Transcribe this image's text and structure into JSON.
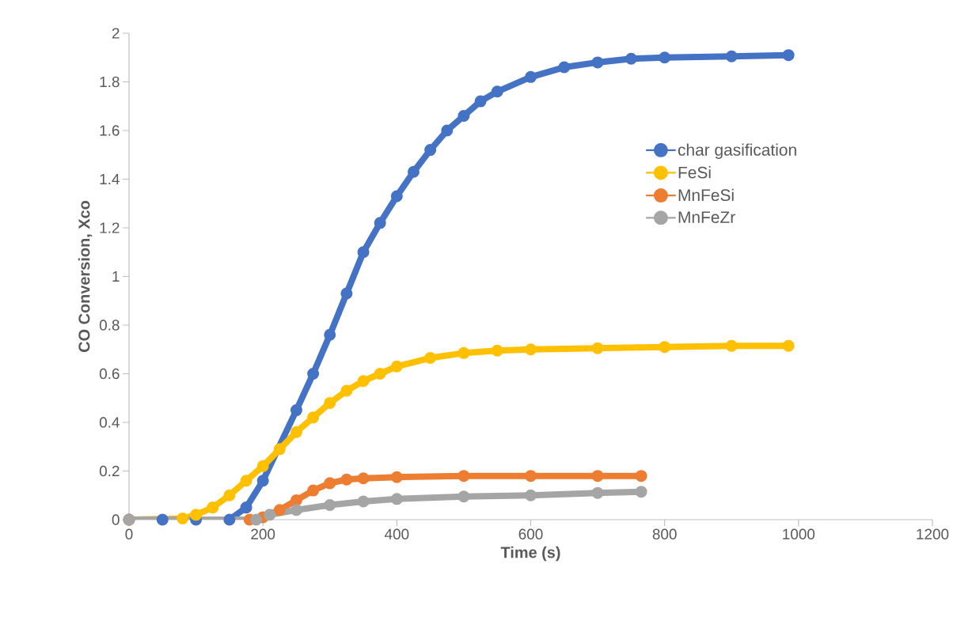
{
  "chart_data": {
    "type": "line",
    "xlabel": "Time (s)",
    "ylabel": "CO Conversion, Xco",
    "xlim": [
      0,
      1200
    ],
    "xticks": [
      0,
      200,
      400,
      600,
      800,
      1000,
      1200
    ],
    "ylim": [
      0,
      2
    ],
    "yticks": [
      0,
      0.2,
      0.4,
      0.6,
      0.8,
      1,
      1.2,
      1.4,
      1.6,
      1.8,
      2
    ],
    "grid": false,
    "legend": "right",
    "marker": "circle",
    "line_style": "solid",
    "series": [
      {
        "name": "char gasification",
        "color": "#4472c4",
        "x": [
          0,
          50,
          100,
          150,
          175,
          200,
          250,
          275,
          300,
          325,
          350,
          375,
          400,
          425,
          450,
          475,
          500,
          525,
          550,
          600,
          650,
          700,
          750,
          800,
          900,
          985
        ],
        "values": [
          0,
          0,
          0,
          0,
          0.05,
          0.16,
          0.45,
          0.6,
          0.76,
          0.93,
          1.1,
          1.22,
          1.33,
          1.43,
          1.52,
          1.6,
          1.66,
          1.72,
          1.76,
          1.82,
          1.86,
          1.88,
          1.895,
          1.9,
          1.905,
          1.91
        ]
      },
      {
        "name": "FeSi",
        "color": "#ffc000",
        "x": [
          0,
          80,
          100,
          125,
          150,
          175,
          200,
          225,
          250,
          275,
          300,
          325,
          350,
          375,
          400,
          450,
          500,
          550,
          600,
          700,
          800,
          900,
          985
        ],
        "values": [
          0,
          0.005,
          0.02,
          0.05,
          0.1,
          0.16,
          0.22,
          0.29,
          0.36,
          0.42,
          0.48,
          0.53,
          0.57,
          0.6,
          0.63,
          0.665,
          0.685,
          0.695,
          0.7,
          0.705,
          0.71,
          0.715,
          0.715
        ]
      },
      {
        "name": "MnFeSi",
        "color": "#ed7d31",
        "x": [
          0,
          180,
          200,
          225,
          250,
          275,
          300,
          325,
          350,
          400,
          500,
          600,
          700,
          765
        ],
        "values": [
          0,
          0,
          0.01,
          0.04,
          0.08,
          0.12,
          0.15,
          0.165,
          0.17,
          0.175,
          0.18,
          0.18,
          0.18,
          0.18
        ]
      },
      {
        "name": "MnFeZr",
        "color": "#a5a5a5",
        "x": [
          0,
          190,
          210,
          250,
          300,
          350,
          400,
          500,
          600,
          700,
          765
        ],
        "values": [
          0,
          0,
          0.02,
          0.04,
          0.06,
          0.075,
          0.085,
          0.095,
          0.1,
          0.11,
          0.115
        ]
      }
    ]
  }
}
